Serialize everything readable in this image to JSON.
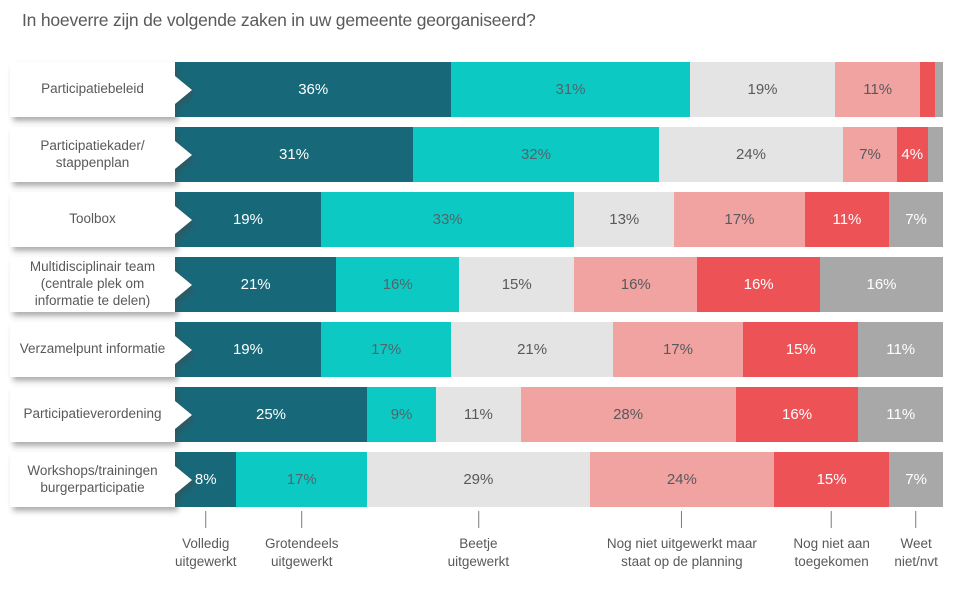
{
  "title": "In hoeverre zijn de volgende zaken in uw gemeente georganiseerd?",
  "colors": {
    "series": [
      "#17697a",
      "#0dc9c3",
      "#e5e4e4",
      "#f1a3a2",
      "#ed5356",
      "#a9a8a8"
    ],
    "segment_text": [
      "#ffffff",
      "#4f666a",
      "#58595b",
      "#58595b",
      "#ffffff",
      "#ffffff"
    ],
    "title_text": "#58595b"
  },
  "chart_data": {
    "type": "bar",
    "stacked": true,
    "orientation": "horizontal",
    "unit": "%",
    "title": "In hoeverre zijn de volgende zaken in uw gemeente georganiseerd?",
    "series_names": [
      "Volledig uitgewerkt",
      "Grotendeels uitgewerkt",
      "Beetje uitgewerkt",
      "Nog niet uitgewerkt maar staat op de planning",
      "Nog niet aan toegekomen",
      "Weet niet/nvt"
    ],
    "rows": [
      {
        "label": "Participatiebeleid",
        "values": [
          36,
          31,
          19,
          11,
          2,
          1
        ],
        "segment_labels": [
          "36%",
          "31%",
          "19%",
          "11%",
          "",
          ""
        ]
      },
      {
        "label": "Participatiekader/\nstappenplan",
        "values": [
          31,
          32,
          24,
          7,
          4,
          2
        ],
        "segment_labels": [
          "31%",
          "32%",
          "24%",
          "7%",
          "4%",
          ""
        ]
      },
      {
        "label": "Toolbox",
        "values": [
          19,
          33,
          13,
          17,
          11,
          7
        ],
        "segment_labels": [
          "19%",
          "33%",
          "13%",
          "17%",
          "11%",
          "7%"
        ]
      },
      {
        "label": "Multidisciplinair team\n(centrale plek om\ninformatie te delen)",
        "values": [
          21,
          16,
          15,
          16,
          16,
          16
        ],
        "segment_labels": [
          "21%",
          "16%",
          "15%",
          "16%",
          "16%",
          "16%"
        ]
      },
      {
        "label": "Verzamelpunt informatie",
        "values": [
          19,
          17,
          21,
          17,
          15,
          11
        ],
        "segment_labels": [
          "19%",
          "17%",
          "21%",
          "17%",
          "15%",
          "11%"
        ]
      },
      {
        "label": "Participatieverordening",
        "values": [
          25,
          9,
          11,
          28,
          16,
          11
        ],
        "segment_labels": [
          "25%",
          "9%",
          "11%",
          "28%",
          "16%",
          "11%"
        ]
      },
      {
        "label": "Workshops/trainingen\nburgerparticipatie",
        "values": [
          8,
          17,
          29,
          24,
          15,
          7
        ],
        "segment_labels": [
          "8%",
          "17%",
          "29%",
          "24%",
          "15%",
          "7%"
        ]
      }
    ],
    "legend": [
      {
        "text": "Volledig\nuitgewerkt"
      },
      {
        "text": "Grotendeels\nuitgewerkt"
      },
      {
        "text": "Beetje\nuitgewerkt"
      },
      {
        "text": "Nog niet uitgewerkt maar\nstaat op de planning"
      },
      {
        "text": "Nog niet aan\ntoegekomen"
      },
      {
        "text": "Weet\nniet/nvt"
      }
    ],
    "layout": {
      "legend_position": "bottom",
      "grid": false,
      "x_range": [
        0,
        100
      ]
    }
  }
}
